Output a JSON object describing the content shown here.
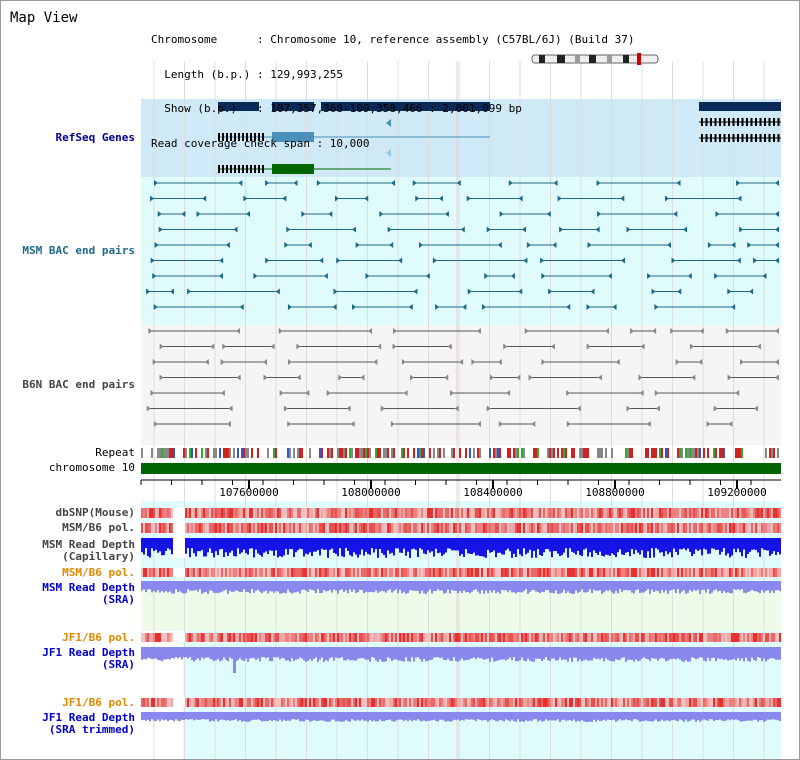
{
  "view": {
    "title": "Map View",
    "info_lines": [
      "Chromosome      : Chromosome 10, reference assembly (C57BL/6J) (Build 37)",
      "  Length (b.p.) : 129,993,255",
      "  Show (b.p.)   : 107,357,368-109,358,466 : 2,001,099 bp",
      "Read coverage check span : 10,000"
    ]
  },
  "tracks": {
    "refseq": "RefSeq Genes",
    "msm_bac": "MSM BAC end pairs",
    "b6n_bac": "B6N BAC end pairs",
    "repeat": "Repeat",
    "chromosome": "chromosome 10",
    "dbsnp": "dbSNP(Mouse)",
    "msm_pol": "MSM/B6 pol.",
    "msm_depth_cap_1": "MSM Read Depth",
    "msm_depth_cap_2": "(Capillary)",
    "msm_pol_2": "MSM/B6 pol.",
    "msm_depth_sra_1": "MSM Read Depth",
    "msm_depth_sra_2": "(SRA)",
    "jf1_pol": "JF1/B6 pol.",
    "jf1_depth_1": "JF1 Read Depth",
    "jf1_depth_2": "(SRA)",
    "jf1_pol_2": "JF1/B6 pol.",
    "jf1_trim_1": "JF1 Read Depth",
    "jf1_trim_2": "(SRA trimmed)"
  },
  "axis": {
    "ticks": [
      "107600000",
      "108000000",
      "108400000",
      "108800000",
      "109200000"
    ]
  },
  "colors": {
    "refseq_bg": "#cfe9f7",
    "track_bg": "#e0fbfb",
    "b6n_bg": "#f5f5f5",
    "gene_dark": "#0a2a5a",
    "gene_light": "#4a90b8",
    "gene_green": "#006600",
    "bac_teal": "#1f6a8a",
    "bac_gray": "#555555",
    "chromosome": "#006400",
    "depth_blue": "#1414e6",
    "depth_light": "#8888ee",
    "pol_red": "#e83030"
  }
}
